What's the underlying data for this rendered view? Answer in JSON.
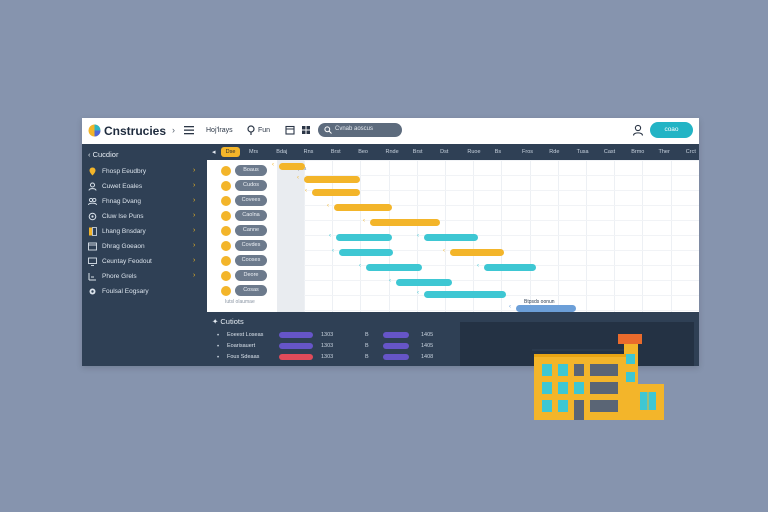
{
  "app": {
    "brand": "Cnstrucies",
    "top_links": [
      "Hoj'lrays",
      "Fun"
    ],
    "search_text": "Cvnab aoscus",
    "cta_label": "coao"
  },
  "sidebar": {
    "header": "Cucdior",
    "items": [
      {
        "label": "Fhosp Eeudbry",
        "icon": "marker-icon"
      },
      {
        "label": "Cuwet Eoales",
        "icon": "user-icon"
      },
      {
        "label": "Fhnag Dvang",
        "icon": "people-icon"
      },
      {
        "label": "Cluw Ise Puns",
        "icon": "gear-icon"
      },
      {
        "label": "Lhang Bnsdary",
        "icon": "bookmark-icon"
      },
      {
        "label": "Dhrag Goeaon",
        "icon": "window-icon"
      },
      {
        "label": "Ceuntay Feodout",
        "icon": "monitor-icon"
      },
      {
        "label": "Phore Grels",
        "icon": "truck-icon"
      },
      {
        "label": "Foulsal Eogsary",
        "icon": "cog-icon"
      }
    ]
  },
  "timeline": {
    "today_label": "Dse",
    "headers": [
      "Mrs",
      "Bdaj",
      "Rns",
      "Brst",
      "Beo",
      "Rnde",
      "Brst",
      "Dst",
      "Ruoe",
      "Bs",
      "Fros",
      "Rde",
      "Tusa",
      "Cast",
      "Brmo",
      "Ther",
      "Crct"
    ],
    "tasks": [
      "Boaus",
      "Cudos",
      "Covees",
      "Caolna",
      "Canne",
      "Covdes",
      "Cooses",
      "Deore",
      "Cosas"
    ],
    "footer_label": "Iutsl olaumae",
    "side_label": "Dtpua",
    "tail_label": "Btpsds oonun"
  },
  "bottom": {
    "title": "Cutiots",
    "rows": [
      {
        "name": "Eoeest Loseas",
        "v1": "1303",
        "h1": "B",
        "v2": "1405"
      },
      {
        "name": "Eoarisauert",
        "v1": "1303",
        "h1": "B",
        "v2": "1405"
      },
      {
        "name": "Fous Sdeaas",
        "v1": "1303",
        "h1": "B",
        "v2": "1408"
      }
    ]
  },
  "colors": {
    "background": "#8694ae",
    "navy": "#2f4055",
    "yellow": "#f3b52a",
    "teal": "#3ec7d3",
    "purple": "#6655c8",
    "red": "#e04b5a"
  }
}
